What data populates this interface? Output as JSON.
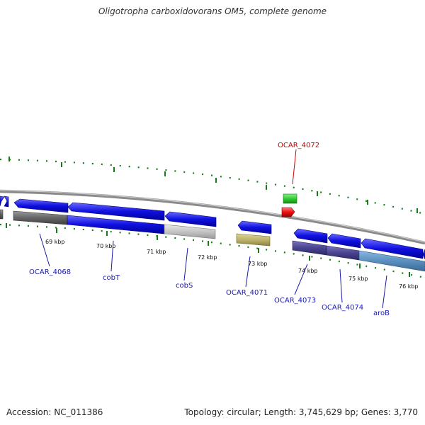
{
  "title": "Oligotropha carboxidovorans OM5, complete genome",
  "accession": "Accession: NC_011386",
  "summary": "Topology: circular; Length: 3,745,629 bp; Genes: 3,770",
  "scale_labels": [
    "69 kbp",
    "70 kbp",
    "71 kbp",
    "72 kbp",
    "73 kbp",
    "74 kbp",
    "75 kbp",
    "76 kbp"
  ],
  "gene_labels": [
    "OCAR_4068",
    "cobT",
    "cobS",
    "OCAR_4071",
    "OCAR_4072",
    "OCAR_4073",
    "OCAR_4074",
    "aroB"
  ],
  "colors": {
    "cds_blue": "#1010e0",
    "gene_label_blue": "#1a1aaa",
    "gene_label_red": "#cc0000",
    "backbone": "#8a8a8a",
    "tick_green": "#1a7a1a",
    "track_dark_gray": "#666666",
    "track_light_gray": "#c4c4c4",
    "track_khaki": "#bdb36a",
    "track_slate_purple": "#4a4490",
    "track_steel_blue": "#5a8fbf",
    "rna_green": "#33cc33",
    "rna_red": "#ee1111"
  }
}
